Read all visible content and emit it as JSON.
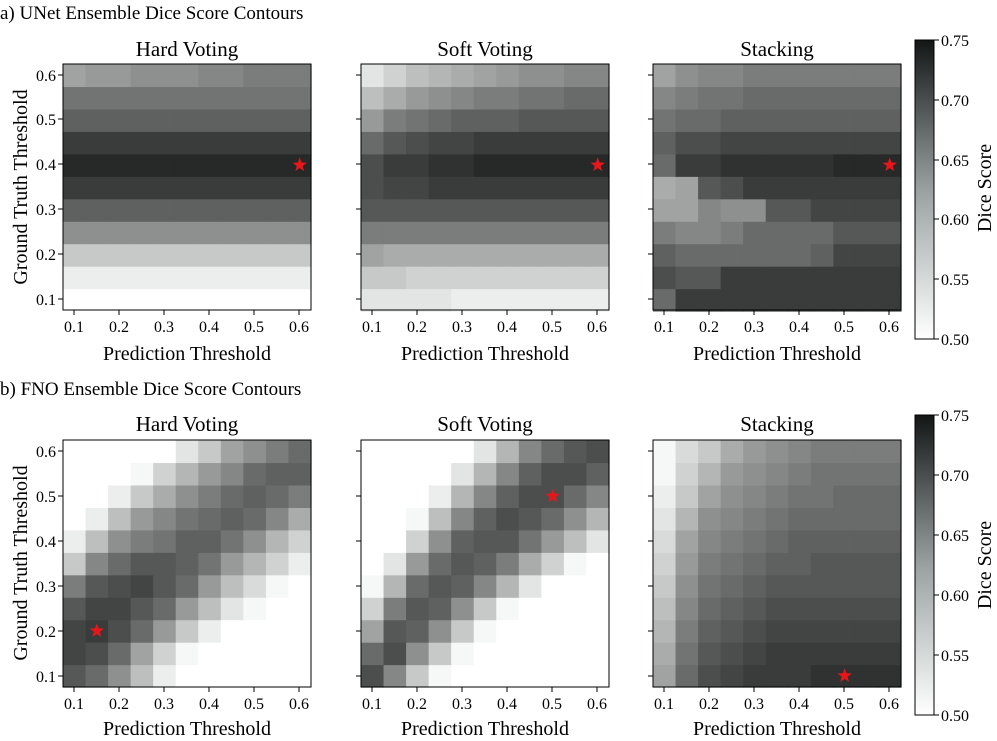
{
  "chart_data": [
    {
      "type": "heatmap",
      "section": "a) UNet Ensemble Dice Score Contours",
      "colorbar": {
        "label": "Dice Score",
        "range": [
          0.5,
          0.75
        ],
        "ticks": [
          "0.75",
          "0.70",
          "0.65",
          "0.60",
          "0.55",
          "0.50"
        ]
      },
      "panels": [
        {
          "title": "Hard Voting",
          "xlabel": "Prediction Threshold",
          "ylabel": "Ground Truth Threshold",
          "x_ticks": [
            "0.1",
            "0.2",
            "0.3",
            "0.4",
            "0.5",
            "0.6"
          ],
          "y_ticks": [
            "0.1",
            "0.2",
            "0.3",
            "0.4",
            "0.5",
            "0.6"
          ],
          "rows_bottom_to_top": [
            [
              0.5,
              0.5,
              0.5,
              0.5,
              0.5,
              0.5,
              0.5,
              0.5,
              0.5,
              0.5,
              0.5
            ],
            [
              0.52,
              0.52,
              0.52,
              0.52,
              0.52,
              0.52,
              0.52,
              0.52,
              0.52,
              0.52,
              0.52
            ],
            [
              0.56,
              0.56,
              0.56,
              0.56,
              0.56,
              0.56,
              0.56,
              0.56,
              0.56,
              0.56,
              0.56
            ],
            [
              0.62,
              0.62,
              0.62,
              0.62,
              0.62,
              0.62,
              0.62,
              0.62,
              0.62,
              0.62,
              0.62
            ],
            [
              0.67,
              0.67,
              0.67,
              0.67,
              0.67,
              0.67,
              0.67,
              0.67,
              0.67,
              0.67,
              0.67
            ],
            [
              0.71,
              0.71,
              0.71,
              0.71,
              0.71,
              0.71,
              0.71,
              0.71,
              0.71,
              0.71,
              0.71
            ],
            [
              0.73,
              0.73,
              0.73,
              0.73,
              0.73,
              0.73,
              0.73,
              0.73,
              0.73,
              0.73,
              0.73
            ],
            [
              0.71,
              0.71,
              0.71,
              0.71,
              0.71,
              0.71,
              0.71,
              0.71,
              0.71,
              0.71,
              0.71
            ],
            [
              0.67,
              0.67,
              0.67,
              0.67,
              0.67,
              0.67,
              0.67,
              0.67,
              0.67,
              0.67,
              0.67
            ],
            [
              0.65,
              0.65,
              0.65,
              0.65,
              0.65,
              0.65,
              0.65,
              0.65,
              0.65,
              0.65,
              0.65
            ],
            [
              0.6,
              0.61,
              0.61,
              0.62,
              0.62,
              0.62,
              0.63,
              0.63,
              0.64,
              0.64,
              0.64
            ]
          ],
          "best": {
            "x": 0.6,
            "y": 0.4
          }
        },
        {
          "title": "Soft Voting",
          "xlabel": "Prediction Threshold",
          "x_ticks": [
            "0.1",
            "0.2",
            "0.3",
            "0.4",
            "0.5",
            "0.6"
          ],
          "rows_bottom_to_top": [
            [
              0.53,
              0.53,
              0.53,
              0.53,
              0.52,
              0.52,
              0.52,
              0.52,
              0.52,
              0.52,
              0.52
            ],
            [
              0.56,
              0.56,
              0.55,
              0.55,
              0.55,
              0.55,
              0.55,
              0.55,
              0.55,
              0.55,
              0.55
            ],
            [
              0.6,
              0.59,
              0.59,
              0.59,
              0.59,
              0.59,
              0.59,
              0.59,
              0.59,
              0.59,
              0.59
            ],
            [
              0.64,
              0.64,
              0.64,
              0.64,
              0.64,
              0.64,
              0.64,
              0.64,
              0.64,
              0.64,
              0.64
            ],
            [
              0.68,
              0.68,
              0.68,
              0.68,
              0.68,
              0.68,
              0.68,
              0.68,
              0.68,
              0.68,
              0.68
            ],
            [
              0.69,
              0.7,
              0.7,
              0.71,
              0.71,
              0.71,
              0.71,
              0.71,
              0.71,
              0.71,
              0.71
            ],
            [
              0.69,
              0.71,
              0.71,
              0.72,
              0.72,
              0.73,
              0.73,
              0.73,
              0.73,
              0.73,
              0.73
            ],
            [
              0.66,
              0.68,
              0.69,
              0.7,
              0.7,
              0.71,
              0.71,
              0.71,
              0.71,
              0.71,
              0.71
            ],
            [
              0.61,
              0.64,
              0.65,
              0.66,
              0.67,
              0.67,
              0.67,
              0.68,
              0.68,
              0.68,
              0.68
            ],
            [
              0.57,
              0.59,
              0.61,
              0.62,
              0.63,
              0.64,
              0.64,
              0.65,
              0.65,
              0.66,
              0.66
            ],
            [
              0.53,
              0.55,
              0.57,
              0.58,
              0.59,
              0.6,
              0.61,
              0.62,
              0.62,
              0.63,
              0.63
            ]
          ],
          "best": {
            "x": 0.6,
            "y": 0.4
          }
        },
        {
          "title": "Stacking",
          "xlabel": "Prediction Threshold",
          "x_ticks": [
            "0.1",
            "0.2",
            "0.3",
            "0.4",
            "0.5",
            "0.6"
          ],
          "rows_bottom_to_top": [
            [
              0.66,
              0.71,
              0.71,
              0.71,
              0.71,
              0.71,
              0.71,
              0.71,
              0.71,
              0.71,
              0.71
            ],
            [
              0.69,
              0.68,
              0.68,
              0.71,
              0.71,
              0.71,
              0.71,
              0.71,
              0.71,
              0.71,
              0.71
            ],
            [
              0.67,
              0.66,
              0.66,
              0.66,
              0.66,
              0.66,
              0.66,
              0.67,
              0.7,
              0.7,
              0.7
            ],
            [
              0.64,
              0.63,
              0.63,
              0.64,
              0.66,
              0.66,
              0.66,
              0.66,
              0.68,
              0.68,
              0.68
            ],
            [
              0.6,
              0.6,
              0.63,
              0.62,
              0.62,
              0.68,
              0.68,
              0.7,
              0.7,
              0.7,
              0.7
            ],
            [
              0.59,
              0.6,
              0.68,
              0.69,
              0.71,
              0.71,
              0.71,
              0.71,
              0.71,
              0.71,
              0.71
            ],
            [
              0.66,
              0.71,
              0.71,
              0.72,
              0.72,
              0.72,
              0.72,
              0.72,
              0.73,
              0.73,
              0.73
            ],
            [
              0.67,
              0.69,
              0.69,
              0.7,
              0.7,
              0.7,
              0.7,
              0.7,
              0.7,
              0.7,
              0.7
            ],
            [
              0.65,
              0.66,
              0.66,
              0.67,
              0.67,
              0.67,
              0.67,
              0.67,
              0.67,
              0.67,
              0.67
            ],
            [
              0.63,
              0.64,
              0.65,
              0.65,
              0.66,
              0.66,
              0.66,
              0.66,
              0.66,
              0.66,
              0.66
            ],
            [
              0.6,
              0.62,
              0.63,
              0.63,
              0.64,
              0.64,
              0.64,
              0.64,
              0.64,
              0.64,
              0.64
            ]
          ],
          "best": {
            "x": 0.6,
            "y": 0.4
          }
        }
      ]
    },
    {
      "type": "heatmap",
      "section": "b) FNO Ensemble Dice Score Contours",
      "colorbar": {
        "label": "Dice Score",
        "range": [
          0.5,
          0.75
        ],
        "ticks": [
          "0.75",
          "0.70",
          "0.65",
          "0.60",
          "0.55",
          "0.50"
        ]
      },
      "panels": [
        {
          "title": "Hard Voting",
          "xlabel": "Prediction Threshold",
          "ylabel": "Ground Truth Threshold",
          "x_ticks": [
            "0.1",
            "0.2",
            "0.3",
            "0.4",
            "0.5",
            "0.6"
          ],
          "y_ticks": [
            "0.1",
            "0.2",
            "0.3",
            "0.4",
            "0.5",
            "0.6"
          ],
          "rows_bottom_to_top": [
            [
              0.68,
              0.66,
              0.62,
              0.57,
              0.52,
              0.5,
              0.5,
              0.5,
              0.5,
              0.5,
              0.5
            ],
            [
              0.7,
              0.69,
              0.66,
              0.6,
              0.55,
              0.51,
              0.5,
              0.5,
              0.5,
              0.5,
              0.5
            ],
            [
              0.7,
              0.71,
              0.69,
              0.66,
              0.61,
              0.56,
              0.52,
              0.5,
              0.5,
              0.5,
              0.5
            ],
            [
              0.68,
              0.7,
              0.7,
              0.68,
              0.66,
              0.61,
              0.57,
              0.53,
              0.51,
              0.5,
              0.5
            ],
            [
              0.64,
              0.68,
              0.69,
              0.7,
              0.68,
              0.66,
              0.61,
              0.57,
              0.54,
              0.51,
              0.5
            ],
            [
              0.56,
              0.63,
              0.66,
              0.68,
              0.68,
              0.67,
              0.65,
              0.61,
              0.58,
              0.55,
              0.52
            ],
            [
              0.52,
              0.57,
              0.62,
              0.64,
              0.65,
              0.67,
              0.67,
              0.65,
              0.62,
              0.58,
              0.55
            ],
            [
              0.5,
              0.52,
              0.57,
              0.61,
              0.63,
              0.65,
              0.66,
              0.67,
              0.66,
              0.63,
              0.59
            ],
            [
              0.5,
              0.5,
              0.52,
              0.56,
              0.59,
              0.62,
              0.64,
              0.66,
              0.67,
              0.66,
              0.64
            ],
            [
              0.5,
              0.5,
              0.5,
              0.51,
              0.55,
              0.58,
              0.61,
              0.63,
              0.66,
              0.67,
              0.67
            ],
            [
              0.5,
              0.5,
              0.5,
              0.5,
              0.5,
              0.53,
              0.56,
              0.6,
              0.62,
              0.64,
              0.66
            ]
          ],
          "best": {
            "x": 0.15,
            "y": 0.2
          }
        },
        {
          "title": "Soft Voting",
          "xlabel": "Prediction Threshold",
          "x_ticks": [
            "0.1",
            "0.2",
            "0.3",
            "0.4",
            "0.5",
            "0.6"
          ],
          "rows_bottom_to_top": [
            [
              0.69,
              0.63,
              0.56,
              0.51,
              0.5,
              0.5,
              0.5,
              0.5,
              0.5,
              0.5,
              0.5
            ],
            [
              0.66,
              0.69,
              0.62,
              0.56,
              0.51,
              0.5,
              0.5,
              0.5,
              0.5,
              0.5,
              0.5
            ],
            [
              0.6,
              0.68,
              0.67,
              0.62,
              0.56,
              0.51,
              0.5,
              0.5,
              0.5,
              0.5,
              0.5
            ],
            [
              0.55,
              0.64,
              0.68,
              0.67,
              0.62,
              0.56,
              0.51,
              0.5,
              0.5,
              0.5,
              0.5
            ],
            [
              0.51,
              0.58,
              0.66,
              0.68,
              0.67,
              0.63,
              0.58,
              0.53,
              0.5,
              0.5,
              0.5
            ],
            [
              0.5,
              0.53,
              0.61,
              0.66,
              0.68,
              0.67,
              0.64,
              0.59,
              0.55,
              0.51,
              0.5
            ],
            [
              0.5,
              0.5,
              0.55,
              0.62,
              0.67,
              0.68,
              0.68,
              0.65,
              0.61,
              0.57,
              0.53
            ],
            [
              0.5,
              0.5,
              0.51,
              0.57,
              0.63,
              0.67,
              0.69,
              0.68,
              0.66,
              0.62,
              0.58
            ],
            [
              0.5,
              0.5,
              0.5,
              0.52,
              0.58,
              0.63,
              0.67,
              0.69,
              0.69,
              0.66,
              0.63
            ],
            [
              0.5,
              0.5,
              0.5,
              0.5,
              0.53,
              0.58,
              0.63,
              0.67,
              0.69,
              0.69,
              0.67
            ],
            [
              0.5,
              0.5,
              0.5,
              0.5,
              0.5,
              0.53,
              0.58,
              0.63,
              0.66,
              0.68,
              0.69
            ]
          ],
          "best": {
            "x": 0.5,
            "y": 0.5
          }
        },
        {
          "title": "Stacking",
          "xlabel": "Prediction Threshold",
          "x_ticks": [
            "0.1",
            "0.2",
            "0.3",
            "0.4",
            "0.5",
            "0.6"
          ],
          "rows_bottom_to_top": [
            [
              0.6,
              0.66,
              0.69,
              0.7,
              0.71,
              0.71,
              0.71,
              0.72,
              0.72,
              0.72,
              0.72
            ],
            [
              0.59,
              0.65,
              0.68,
              0.69,
              0.7,
              0.71,
              0.71,
              0.71,
              0.71,
              0.71,
              0.71
            ],
            [
              0.58,
              0.64,
              0.67,
              0.68,
              0.69,
              0.7,
              0.7,
              0.7,
              0.7,
              0.7,
              0.7
            ],
            [
              0.57,
              0.63,
              0.66,
              0.67,
              0.68,
              0.69,
              0.69,
              0.69,
              0.69,
              0.69,
              0.69
            ],
            [
              0.56,
              0.62,
              0.65,
              0.66,
              0.67,
              0.68,
              0.68,
              0.68,
              0.68,
              0.68,
              0.68
            ],
            [
              0.55,
              0.61,
              0.64,
              0.65,
              0.66,
              0.67,
              0.67,
              0.68,
              0.68,
              0.68,
              0.68
            ],
            [
              0.54,
              0.6,
              0.63,
              0.64,
              0.65,
              0.66,
              0.67,
              0.67,
              0.67,
              0.67,
              0.67
            ],
            [
              0.53,
              0.58,
              0.62,
              0.63,
              0.64,
              0.65,
              0.66,
              0.66,
              0.66,
              0.66,
              0.66
            ],
            [
              0.52,
              0.56,
              0.6,
              0.62,
              0.63,
              0.64,
              0.65,
              0.65,
              0.66,
              0.66,
              0.66
            ],
            [
              0.51,
              0.55,
              0.58,
              0.61,
              0.62,
              0.63,
              0.64,
              0.65,
              0.65,
              0.65,
              0.65
            ],
            [
              0.51,
              0.54,
              0.56,
              0.59,
              0.61,
              0.62,
              0.63,
              0.64,
              0.64,
              0.64,
              0.64
            ]
          ],
          "best": {
            "x": 0.5,
            "y": 0.1
          }
        }
      ]
    }
  ]
}
